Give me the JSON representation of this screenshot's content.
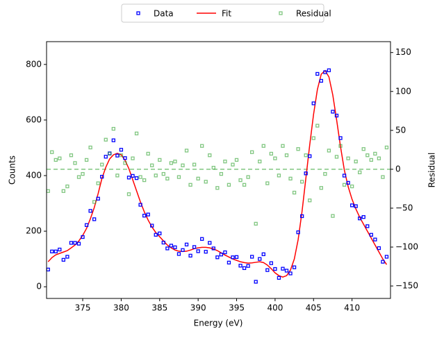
{
  "chart_data": {
    "type": "scatter",
    "xlabel": "Energy (eV)",
    "ylabel": "Counts",
    "y2label": "Residual",
    "x": [
      370.5,
      371,
      371.5,
      372,
      372.5,
      373,
      373.5,
      374,
      374.5,
      375,
      375.5,
      376,
      376.5,
      377,
      377.5,
      378,
      378.5,
      379,
      379.5,
      380,
      380.5,
      381,
      381.5,
      382,
      382.5,
      383,
      383.5,
      384,
      384.5,
      385,
      385.5,
      386,
      386.5,
      387,
      387.5,
      388,
      388.5,
      389,
      389.5,
      390,
      390.5,
      391,
      391.5,
      392,
      392.5,
      393,
      393.5,
      394,
      394.5,
      395,
      395.5,
      396,
      396.5,
      397,
      397.5,
      398,
      398.5,
      399,
      399.5,
      400,
      400.5,
      401,
      401.5,
      402,
      402.5,
      403,
      403.5,
      404,
      404.5,
      405,
      405.5,
      406,
      406.5,
      407,
      407.5,
      408,
      408.5,
      409,
      409.5,
      410,
      410.5,
      411,
      411.5,
      412,
      412.5,
      413,
      413.5,
      414,
      414.5
    ],
    "series": [
      {
        "name": "Data",
        "type": "scatter",
        "color": "#0000ff",
        "values": [
          62,
          127,
          127,
          134,
          97,
          108,
          158,
          158,
          155,
          179,
          222,
          273,
          243,
          317,
          396,
          468,
          480,
          527,
          472,
          493,
          463,
          393,
          399,
          391,
          295,
          256,
          260,
          220,
          187,
          192,
          159,
          138,
          148,
          142,
          118,
          132,
          152,
          112,
          143,
          128,
          172,
          126,
          158,
          138,
          106,
          116,
          124,
          87,
          106,
          107,
          76,
          67,
          75,
          108,
          18,
          100,
          117,
          60,
          85,
          64,
          32,
          65,
          58,
          48,
          70,
          196,
          254,
          408,
          470,
          660,
          766,
          741,
          772,
          779,
          630,
          616,
          535,
          400,
          374,
          293,
          290,
          246,
          251,
          218,
          187,
          170,
          139,
          90,
          108
        ]
      },
      {
        "name": "Fit",
        "type": "line",
        "color": "#ff0000",
        "values": [
          90,
          105,
          115,
          120,
          125,
          130,
          140,
          150,
          165,
          185,
          210,
          245,
          285,
          335,
          390,
          430,
          460,
          475,
          480,
          475,
          455,
          425,
          385,
          345,
          305,
          270,
          240,
          215,
          195,
          180,
          165,
          150,
          140,
          132,
          128,
          127,
          128,
          132,
          137,
          140,
          142,
          142,
          140,
          136,
          130,
          122,
          114,
          107,
          100,
          95,
          90,
          87,
          85,
          86,
          88,
          90,
          87,
          78,
          65,
          50,
          40,
          35,
          40,
          60,
          100,
          170,
          270,
          390,
          510,
          620,
          710,
          765,
          778,
          755,
          690,
          600,
          505,
          420,
          360,
          315,
          280,
          250,
          225,
          200,
          175,
          150,
          125,
          100,
          80
        ]
      },
      {
        "name": "Residual",
        "type": "scatter",
        "axis": "y2",
        "color": "#2ca02c",
        "values": [
          -28,
          22,
          12,
          14,
          -28,
          -22,
          18,
          8,
          -10,
          -6,
          12,
          28,
          -42,
          -18,
          6,
          38,
          20,
          52,
          -8,
          18,
          8,
          -32,
          14,
          46,
          -10,
          -14,
          20,
          5,
          -8,
          12,
          -6,
          -12,
          8,
          10,
          -10,
          5,
          24,
          -20,
          6,
          -12,
          30,
          -16,
          18,
          2,
          -24,
          -6,
          10,
          -20,
          6,
          12,
          -14,
          -20,
          -10,
          22,
          -70,
          10,
          30,
          -18,
          20,
          14,
          -8,
          30,
          18,
          -12,
          -30,
          26,
          -16,
          18,
          -40,
          40,
          56,
          -24,
          -6,
          24,
          -60,
          16,
          30,
          -20,
          14,
          -22,
          10,
          -4,
          26,
          18,
          12,
          20,
          14,
          -10,
          28
        ]
      }
    ],
    "xlim": [
      370.3,
      415
    ],
    "xticks": [
      375,
      380,
      385,
      390,
      395,
      400,
      405,
      410
    ],
    "ylim": [
      -42,
      882
    ],
    "yticks": [
      0,
      200,
      400,
      600,
      800
    ],
    "y2lim": [
      -166,
      164
    ],
    "y2ticks": [
      {
        "value": -150,
        "label": "−150"
      },
      {
        "value": -100,
        "label": "−100"
      },
      {
        "value": -50,
        "label": "−50"
      },
      0,
      50,
      100,
      150
    ],
    "legend": "upper center"
  }
}
